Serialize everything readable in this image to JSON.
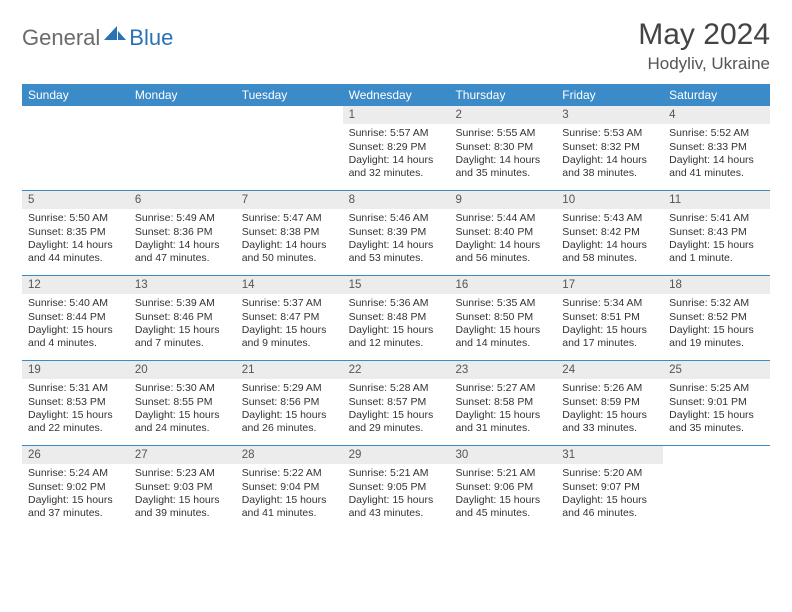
{
  "brand": {
    "part1": "General",
    "part2": "Blue"
  },
  "title": "May 2024",
  "location": "Hodyliv, Ukraine",
  "colors": {
    "header_bar": "#3b8bc8",
    "daynum_bg": "#ececec",
    "rule": "#3b8bc8",
    "text": "#333333",
    "brand_gray": "#6b6b6b",
    "brand_blue": "#2a72b5"
  },
  "dow": [
    "Sunday",
    "Monday",
    "Tuesday",
    "Wednesday",
    "Thursday",
    "Friday",
    "Saturday"
  ],
  "weeks": [
    [
      {
        "n": "",
        "sr": "",
        "ss": "",
        "dl": ""
      },
      {
        "n": "",
        "sr": "",
        "ss": "",
        "dl": ""
      },
      {
        "n": "",
        "sr": "",
        "ss": "",
        "dl": ""
      },
      {
        "n": "1",
        "sr": "Sunrise: 5:57 AM",
        "ss": "Sunset: 8:29 PM",
        "dl": "Daylight: 14 hours and 32 minutes."
      },
      {
        "n": "2",
        "sr": "Sunrise: 5:55 AM",
        "ss": "Sunset: 8:30 PM",
        "dl": "Daylight: 14 hours and 35 minutes."
      },
      {
        "n": "3",
        "sr": "Sunrise: 5:53 AM",
        "ss": "Sunset: 8:32 PM",
        "dl": "Daylight: 14 hours and 38 minutes."
      },
      {
        "n": "4",
        "sr": "Sunrise: 5:52 AM",
        "ss": "Sunset: 8:33 PM",
        "dl": "Daylight: 14 hours and 41 minutes."
      }
    ],
    [
      {
        "n": "5",
        "sr": "Sunrise: 5:50 AM",
        "ss": "Sunset: 8:35 PM",
        "dl": "Daylight: 14 hours and 44 minutes."
      },
      {
        "n": "6",
        "sr": "Sunrise: 5:49 AM",
        "ss": "Sunset: 8:36 PM",
        "dl": "Daylight: 14 hours and 47 minutes."
      },
      {
        "n": "7",
        "sr": "Sunrise: 5:47 AM",
        "ss": "Sunset: 8:38 PM",
        "dl": "Daylight: 14 hours and 50 minutes."
      },
      {
        "n": "8",
        "sr": "Sunrise: 5:46 AM",
        "ss": "Sunset: 8:39 PM",
        "dl": "Daylight: 14 hours and 53 minutes."
      },
      {
        "n": "9",
        "sr": "Sunrise: 5:44 AM",
        "ss": "Sunset: 8:40 PM",
        "dl": "Daylight: 14 hours and 56 minutes."
      },
      {
        "n": "10",
        "sr": "Sunrise: 5:43 AM",
        "ss": "Sunset: 8:42 PM",
        "dl": "Daylight: 14 hours and 58 minutes."
      },
      {
        "n": "11",
        "sr": "Sunrise: 5:41 AM",
        "ss": "Sunset: 8:43 PM",
        "dl": "Daylight: 15 hours and 1 minute."
      }
    ],
    [
      {
        "n": "12",
        "sr": "Sunrise: 5:40 AM",
        "ss": "Sunset: 8:44 PM",
        "dl": "Daylight: 15 hours and 4 minutes."
      },
      {
        "n": "13",
        "sr": "Sunrise: 5:39 AM",
        "ss": "Sunset: 8:46 PM",
        "dl": "Daylight: 15 hours and 7 minutes."
      },
      {
        "n": "14",
        "sr": "Sunrise: 5:37 AM",
        "ss": "Sunset: 8:47 PM",
        "dl": "Daylight: 15 hours and 9 minutes."
      },
      {
        "n": "15",
        "sr": "Sunrise: 5:36 AM",
        "ss": "Sunset: 8:48 PM",
        "dl": "Daylight: 15 hours and 12 minutes."
      },
      {
        "n": "16",
        "sr": "Sunrise: 5:35 AM",
        "ss": "Sunset: 8:50 PM",
        "dl": "Daylight: 15 hours and 14 minutes."
      },
      {
        "n": "17",
        "sr": "Sunrise: 5:34 AM",
        "ss": "Sunset: 8:51 PM",
        "dl": "Daylight: 15 hours and 17 minutes."
      },
      {
        "n": "18",
        "sr": "Sunrise: 5:32 AM",
        "ss": "Sunset: 8:52 PM",
        "dl": "Daylight: 15 hours and 19 minutes."
      }
    ],
    [
      {
        "n": "19",
        "sr": "Sunrise: 5:31 AM",
        "ss": "Sunset: 8:53 PM",
        "dl": "Daylight: 15 hours and 22 minutes."
      },
      {
        "n": "20",
        "sr": "Sunrise: 5:30 AM",
        "ss": "Sunset: 8:55 PM",
        "dl": "Daylight: 15 hours and 24 minutes."
      },
      {
        "n": "21",
        "sr": "Sunrise: 5:29 AM",
        "ss": "Sunset: 8:56 PM",
        "dl": "Daylight: 15 hours and 26 minutes."
      },
      {
        "n": "22",
        "sr": "Sunrise: 5:28 AM",
        "ss": "Sunset: 8:57 PM",
        "dl": "Daylight: 15 hours and 29 minutes."
      },
      {
        "n": "23",
        "sr": "Sunrise: 5:27 AM",
        "ss": "Sunset: 8:58 PM",
        "dl": "Daylight: 15 hours and 31 minutes."
      },
      {
        "n": "24",
        "sr": "Sunrise: 5:26 AM",
        "ss": "Sunset: 8:59 PM",
        "dl": "Daylight: 15 hours and 33 minutes."
      },
      {
        "n": "25",
        "sr": "Sunrise: 5:25 AM",
        "ss": "Sunset: 9:01 PM",
        "dl": "Daylight: 15 hours and 35 minutes."
      }
    ],
    [
      {
        "n": "26",
        "sr": "Sunrise: 5:24 AM",
        "ss": "Sunset: 9:02 PM",
        "dl": "Daylight: 15 hours and 37 minutes."
      },
      {
        "n": "27",
        "sr": "Sunrise: 5:23 AM",
        "ss": "Sunset: 9:03 PM",
        "dl": "Daylight: 15 hours and 39 minutes."
      },
      {
        "n": "28",
        "sr": "Sunrise: 5:22 AM",
        "ss": "Sunset: 9:04 PM",
        "dl": "Daylight: 15 hours and 41 minutes."
      },
      {
        "n": "29",
        "sr": "Sunrise: 5:21 AM",
        "ss": "Sunset: 9:05 PM",
        "dl": "Daylight: 15 hours and 43 minutes."
      },
      {
        "n": "30",
        "sr": "Sunrise: 5:21 AM",
        "ss": "Sunset: 9:06 PM",
        "dl": "Daylight: 15 hours and 45 minutes."
      },
      {
        "n": "31",
        "sr": "Sunrise: 5:20 AM",
        "ss": "Sunset: 9:07 PM",
        "dl": "Daylight: 15 hours and 46 minutes."
      },
      {
        "n": "",
        "sr": "",
        "ss": "",
        "dl": ""
      }
    ]
  ]
}
